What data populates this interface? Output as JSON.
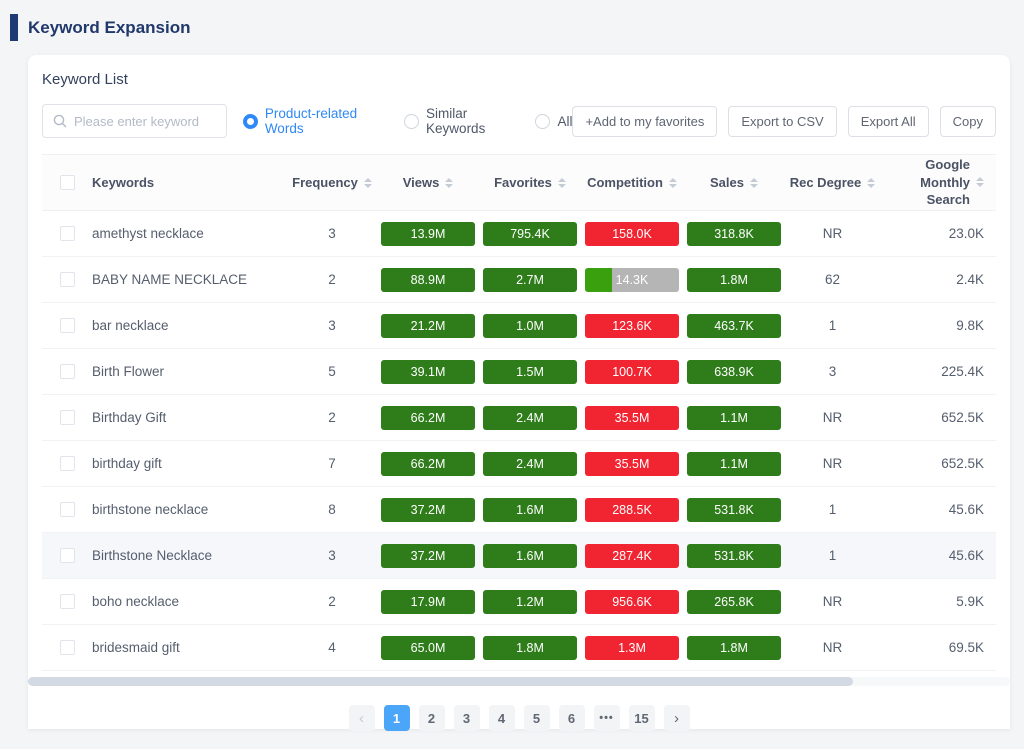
{
  "page": {
    "title": "Keyword Expansion"
  },
  "panel": {
    "title": "Keyword List",
    "search": {
      "placeholder": "Please enter keyword",
      "value": ""
    },
    "filters": [
      {
        "label": "Product-related Words",
        "selected": true
      },
      {
        "label": "Similar Keywords",
        "selected": false
      },
      {
        "label": "All",
        "selected": false
      }
    ],
    "actions": [
      {
        "label": "+Add to my favorites",
        "name": "add-to-favorites-button"
      },
      {
        "label": "Export to CSV",
        "name": "export-to-csv-button"
      },
      {
        "label": "Export All",
        "name": "export-all-button"
      },
      {
        "label": "Copy",
        "name": "copy-button"
      }
    ]
  },
  "table": {
    "columns": [
      {
        "key": "keyword",
        "label": "Keywords",
        "sortable": false
      },
      {
        "key": "frequency",
        "label": "Frequency",
        "sortable": true
      },
      {
        "key": "views",
        "label": "Views",
        "sortable": true
      },
      {
        "key": "favorites",
        "label": "Favorites",
        "sortable": true
      },
      {
        "key": "competition",
        "label": "Competition",
        "sortable": true
      },
      {
        "key": "sales",
        "label": "Sales",
        "sortable": true
      },
      {
        "key": "rec_degree",
        "label": "Rec Degree",
        "sortable": true
      },
      {
        "key": "google_monthly_search",
        "label": "Google Monthly Search",
        "sortable": true
      }
    ],
    "rows": [
      {
        "keyword": "amethyst necklace",
        "frequency": "3",
        "views": "13.9M",
        "favorites": "795.4K",
        "competition": {
          "value": "158.0K",
          "style": "red"
        },
        "sales": "318.8K",
        "rec_degree": "NR",
        "google_monthly_search": "23.0K",
        "highlighted": false
      },
      {
        "keyword": "BABY NAME NECKLACE",
        "frequency": "2",
        "views": "88.9M",
        "favorites": "2.7M",
        "competition": {
          "value": "14.3K",
          "style": "split",
          "fill_percent": 29
        },
        "sales": "1.8M",
        "rec_degree": "62",
        "google_monthly_search": "2.4K",
        "highlighted": false
      },
      {
        "keyword": "bar necklace",
        "frequency": "3",
        "views": "21.2M",
        "favorites": "1.0M",
        "competition": {
          "value": "123.6K",
          "style": "red"
        },
        "sales": "463.7K",
        "rec_degree": "1",
        "google_monthly_search": "9.8K",
        "highlighted": false
      },
      {
        "keyword": "Birth Flower",
        "frequency": "5",
        "views": "39.1M",
        "favorites": "1.5M",
        "competition": {
          "value": "100.7K",
          "style": "red"
        },
        "sales": "638.9K",
        "rec_degree": "3",
        "google_monthly_search": "225.4K",
        "highlighted": false
      },
      {
        "keyword": "Birthday Gift",
        "frequency": "2",
        "views": "66.2M",
        "favorites": "2.4M",
        "competition": {
          "value": "35.5M",
          "style": "red"
        },
        "sales": "1.1M",
        "rec_degree": "NR",
        "google_monthly_search": "652.5K",
        "highlighted": false
      },
      {
        "keyword": "birthday gift",
        "frequency": "7",
        "views": "66.2M",
        "favorites": "2.4M",
        "competition": {
          "value": "35.5M",
          "style": "red"
        },
        "sales": "1.1M",
        "rec_degree": "NR",
        "google_monthly_search": "652.5K",
        "highlighted": false
      },
      {
        "keyword": "birthstone necklace",
        "frequency": "8",
        "views": "37.2M",
        "favorites": "1.6M",
        "competition": {
          "value": "288.5K",
          "style": "red"
        },
        "sales": "531.8K",
        "rec_degree": "1",
        "google_monthly_search": "45.6K",
        "highlighted": false
      },
      {
        "keyword": "Birthstone Necklace",
        "frequency": "3",
        "views": "37.2M",
        "favorites": "1.6M",
        "competition": {
          "value": "287.4K",
          "style": "red"
        },
        "sales": "531.8K",
        "rec_degree": "1",
        "google_monthly_search": "45.6K",
        "highlighted": true
      },
      {
        "keyword": "boho necklace",
        "frequency": "2",
        "views": "17.9M",
        "favorites": "1.2M",
        "competition": {
          "value": "956.6K",
          "style": "red"
        },
        "sales": "265.8K",
        "rec_degree": "NR",
        "google_monthly_search": "5.9K",
        "highlighted": false
      },
      {
        "keyword": "bridesmaid gift",
        "frequency": "4",
        "views": "65.0M",
        "favorites": "1.8M",
        "competition": {
          "value": "1.3M",
          "style": "red"
        },
        "sales": "1.8M",
        "rec_degree": "NR",
        "google_monthly_search": "69.5K",
        "highlighted": false
      }
    ]
  },
  "scrollbar": {
    "thumb_percent": 84
  },
  "pagination": {
    "prev_enabled": false,
    "pages": [
      "1",
      "2",
      "3",
      "4",
      "5",
      "6",
      "•••",
      "15"
    ],
    "active": "1",
    "next_enabled": true
  },
  "colors": {
    "badge_green": "#2e7d1a",
    "badge_red": "#f12531",
    "badge_gray": "#b5b5b5",
    "badge_fill_green": "#3ba00d",
    "radio_blue": "#2f88f7",
    "active_page_blue": "#4ba5f8",
    "title_navy": "#21386b",
    "accent_bar_navy": "#1d3a75"
  }
}
